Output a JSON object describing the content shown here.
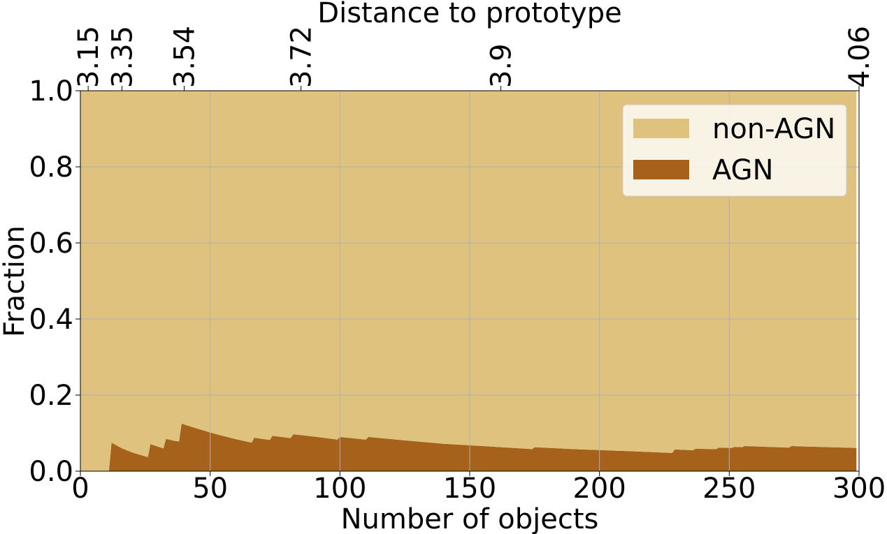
{
  "chart_data": {
    "type": "stacked_area",
    "title": "Distance to prototype",
    "xlabel": "Number of objects",
    "ylabel": "Fraction",
    "x": [
      0,
      11,
      12,
      16,
      20,
      26,
      27,
      31,
      32,
      33,
      36,
      38,
      39,
      45,
      52,
      60,
      66,
      67,
      73,
      74,
      81,
      82,
      90,
      99,
      100,
      110,
      111,
      125,
      140,
      155,
      174,
      175,
      190,
      210,
      228,
      229,
      236,
      237,
      245,
      246,
      251,
      252,
      255,
      256,
      273,
      274,
      299
    ],
    "series": [
      {
        "name": "non-AGN",
        "color": "#dfc27d",
        "values": [
          1,
          1,
          0.925,
          0.94,
          0.951,
          0.963,
          0.929,
          0.938,
          0.94,
          0.915,
          0.92,
          0.922,
          0.875,
          0.888,
          0.902,
          0.916,
          0.925,
          0.912,
          0.918,
          0.907,
          0.913,
          0.903,
          0.909,
          0.917,
          0.91,
          0.917,
          0.91,
          0.919,
          0.928,
          0.934,
          0.942,
          0.937,
          0.942,
          0.947,
          0.952,
          0.943,
          0.945,
          0.941,
          0.942,
          0.938,
          0.939,
          0.936,
          0.937,
          0.934,
          0.938,
          0.934,
          0.939
        ]
      },
      {
        "name": "AGN",
        "color": "#a6611a",
        "values": [
          0,
          0,
          0.075,
          0.06,
          0.049,
          0.037,
          0.071,
          0.062,
          0.06,
          0.085,
          0.08,
          0.078,
          0.125,
          0.112,
          0.098,
          0.084,
          0.075,
          0.088,
          0.082,
          0.093,
          0.087,
          0.097,
          0.091,
          0.083,
          0.09,
          0.083,
          0.09,
          0.081,
          0.072,
          0.066,
          0.058,
          0.063,
          0.058,
          0.053,
          0.048,
          0.057,
          0.055,
          0.059,
          0.058,
          0.062,
          0.061,
          0.064,
          0.063,
          0.066,
          0.062,
          0.066,
          0.061
        ]
      }
    ],
    "xlim": [
      0,
      300
    ],
    "ylim": [
      0,
      1
    ],
    "xticks": [
      0,
      50,
      100,
      150,
      200,
      250,
      300
    ],
    "yticks": [
      {
        "value": 0,
        "label": "0.0"
      },
      0.2,
      0.4,
      0.6,
      0.8,
      {
        "value": 1,
        "label": "1.0"
      }
    ],
    "x2ticks": [
      {
        "value": 3,
        "label": "3.15"
      },
      {
        "value": 16,
        "label": "3.35"
      },
      {
        "value": 40,
        "label": "3.54"
      },
      {
        "value": 85,
        "label": "3.72"
      },
      {
        "value": 162,
        "label": "3.9"
      },
      {
        "value": 300,
        "label": "4.06"
      }
    ],
    "grid": true,
    "legend": "upper right"
  }
}
